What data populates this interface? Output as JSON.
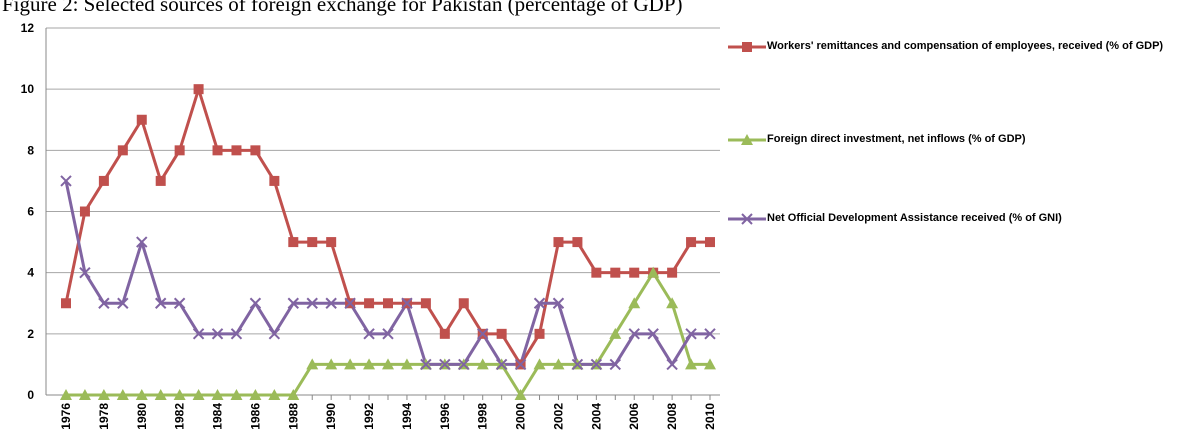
{
  "chart_data": {
    "type": "line",
    "title": "Figure 2: Selected sources of foreign exchange for Pakistan (percentage of GDP)",
    "categories": [
      "1976",
      null,
      "1978",
      null,
      "1980",
      null,
      "1982",
      null,
      "1984",
      null,
      "1986",
      null,
      "1988",
      null,
      "1990",
      null,
      "1992",
      null,
      "1994",
      null,
      "1996",
      null,
      "1998",
      null,
      "2000",
      null,
      "2002",
      null,
      "2004",
      null,
      "2006",
      null,
      "2008",
      null,
      "2010"
    ],
    "series": [
      {
        "name": "Workers' remittances and compensation of employees, received (% of GDP)",
        "color": "#c0504d",
        "marker": "square",
        "values": [
          3,
          6,
          7,
          8,
          9,
          7,
          8,
          10,
          8,
          8,
          8,
          7,
          5,
          5,
          5,
          3,
          3,
          3,
          3,
          3,
          2,
          3,
          2,
          2,
          1,
          2,
          5,
          5,
          4,
          4,
          4,
          4,
          4,
          5,
          5
        ]
      },
      {
        "name": "Foreign direct investment, net inflows (% of GDP)",
        "color": "#9bbb59",
        "marker": "triangle",
        "values": [
          0,
          0,
          0,
          0,
          0,
          0,
          0,
          0,
          0,
          0,
          0,
          0,
          0,
          1,
          1,
          1,
          1,
          1,
          1,
          1,
          1,
          1,
          1,
          1,
          0,
          1,
          1,
          1,
          1,
          2,
          3,
          4,
          3,
          1,
          1
        ]
      },
      {
        "name": "Net Official Development Assistance received (% of GNI)",
        "color": "#8064a2",
        "marker": "x",
        "values": [
          7,
          4,
          3,
          3,
          5,
          3,
          3,
          2,
          2,
          2,
          3,
          2,
          3,
          3,
          3,
          3,
          2,
          2,
          3,
          1,
          1,
          1,
          2,
          1,
          1,
          3,
          3,
          1,
          1,
          1,
          2,
          2,
          1,
          2,
          2
        ]
      }
    ],
    "ylim": [
      0,
      12
    ],
    "yticks": [
      0,
      2,
      4,
      6,
      8,
      10,
      12
    ],
    "grid": true,
    "legend": "right"
  }
}
